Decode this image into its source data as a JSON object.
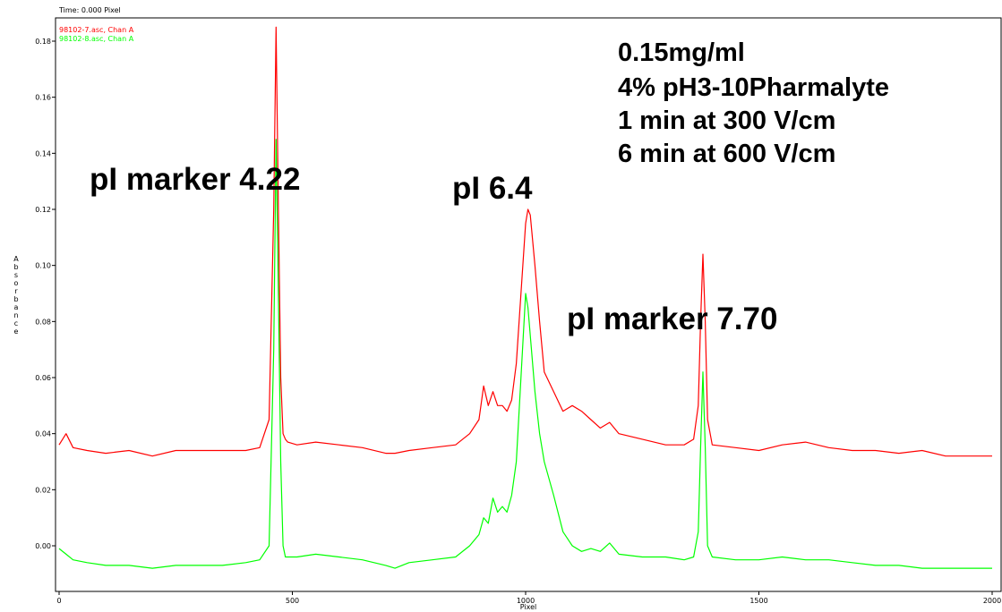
{
  "chart_data": {
    "type": "line",
    "top_label": "Time:  0.000 Pixel",
    "xlabel": "Pixel",
    "ylabel": "Absorbance",
    "xlim": [
      0,
      2000
    ],
    "ylim": [
      -0.016,
      0.187
    ],
    "x_ticks": [
      0,
      500,
      1000,
      1500,
      2000
    ],
    "y_ticks": [
      0.0,
      0.02,
      0.04,
      0.06,
      0.08,
      0.1,
      0.12,
      0.14,
      0.16,
      0.18
    ],
    "y_tick_labels": [
      "0.00",
      "0.02",
      "0.04",
      "0.06",
      "0.08",
      "0.10",
      "0.12",
      "0.14",
      "0.16",
      "0.18"
    ],
    "grid": false,
    "legend_position": "top-left",
    "series": [
      {
        "name": "98102-7.asc, Chan A",
        "color": "#ff0000",
        "x": [
          0,
          15,
          30,
          60,
          100,
          150,
          200,
          250,
          300,
          350,
          400,
          430,
          450,
          460,
          465,
          470,
          475,
          480,
          485,
          490,
          510,
          550,
          600,
          650,
          700,
          720,
          750,
          800,
          850,
          880,
          900,
          910,
          920,
          930,
          940,
          950,
          960,
          970,
          980,
          990,
          1000,
          1005,
          1010,
          1020,
          1030,
          1040,
          1060,
          1080,
          1100,
          1120,
          1140,
          1160,
          1180,
          1200,
          1250,
          1300,
          1340,
          1360,
          1370,
          1375,
          1380,
          1385,
          1390,
          1400,
          1450,
          1500,
          1550,
          1600,
          1650,
          1700,
          1750,
          1800,
          1850,
          1900,
          1950,
          2000
        ],
        "y": [
          0.036,
          0.04,
          0.035,
          0.034,
          0.033,
          0.034,
          0.032,
          0.034,
          0.034,
          0.034,
          0.034,
          0.035,
          0.045,
          0.12,
          0.185,
          0.12,
          0.06,
          0.04,
          0.038,
          0.037,
          0.036,
          0.037,
          0.036,
          0.035,
          0.033,
          0.033,
          0.034,
          0.035,
          0.036,
          0.04,
          0.045,
          0.057,
          0.05,
          0.055,
          0.05,
          0.05,
          0.048,
          0.052,
          0.065,
          0.09,
          0.115,
          0.12,
          0.118,
          0.1,
          0.08,
          0.062,
          0.055,
          0.048,
          0.05,
          0.048,
          0.045,
          0.042,
          0.044,
          0.04,
          0.038,
          0.036,
          0.036,
          0.038,
          0.05,
          0.08,
          0.104,
          0.08,
          0.045,
          0.036,
          0.035,
          0.034,
          0.036,
          0.037,
          0.035,
          0.034,
          0.034,
          0.033,
          0.034,
          0.032,
          0.032,
          0.032
        ]
      },
      {
        "name": "98102-8.asc, Chan A",
        "color": "#00ff00",
        "x": [
          0,
          15,
          30,
          60,
          100,
          150,
          200,
          250,
          300,
          350,
          400,
          430,
          450,
          460,
          465,
          470,
          475,
          480,
          485,
          490,
          510,
          550,
          600,
          650,
          700,
          720,
          750,
          800,
          850,
          880,
          900,
          910,
          920,
          930,
          940,
          950,
          960,
          970,
          980,
          990,
          1000,
          1005,
          1010,
          1020,
          1030,
          1040,
          1060,
          1080,
          1100,
          1120,
          1140,
          1160,
          1180,
          1200,
          1250,
          1300,
          1340,
          1360,
          1370,
          1375,
          1380,
          1385,
          1390,
          1400,
          1450,
          1500,
          1550,
          1600,
          1650,
          1700,
          1750,
          1800,
          1850,
          1900,
          1950,
          2000
        ],
        "y": [
          -0.001,
          -0.003,
          -0.005,
          -0.006,
          -0.007,
          -0.007,
          -0.008,
          -0.007,
          -0.007,
          -0.007,
          -0.006,
          -0.005,
          0.0,
          0.07,
          0.145,
          0.09,
          0.03,
          0.0,
          -0.004,
          -0.004,
          -0.004,
          -0.003,
          -0.004,
          -0.005,
          -0.007,
          -0.008,
          -0.006,
          -0.005,
          -0.004,
          0.0,
          0.004,
          0.01,
          0.008,
          0.017,
          0.012,
          0.014,
          0.012,
          0.018,
          0.03,
          0.06,
          0.09,
          0.085,
          0.075,
          0.055,
          0.04,
          0.03,
          0.018,
          0.005,
          0.0,
          -0.002,
          -0.001,
          -0.002,
          0.001,
          -0.003,
          -0.004,
          -0.004,
          -0.005,
          -0.004,
          0.005,
          0.035,
          0.062,
          0.035,
          0.0,
          -0.004,
          -0.005,
          -0.005,
          -0.004,
          -0.005,
          -0.005,
          -0.006,
          -0.007,
          -0.007,
          -0.008,
          -0.008,
          -0.008,
          -0.008
        ]
      }
    ],
    "annotations": [
      {
        "text": "pI marker 4.22",
        "x": 100,
        "y": 0.133
      },
      {
        "text": "pI 6.4",
        "x": 853,
        "y": 0.123
      },
      {
        "text": "pI marker 7.70",
        "x": 1103,
        "y": 0.075
      }
    ],
    "conditions": [
      "0.15mg/ml",
      "4% pH3-10Pharmalyte",
      "1 min at 300 V/cm",
      "6 min at 600 V/cm"
    ]
  }
}
